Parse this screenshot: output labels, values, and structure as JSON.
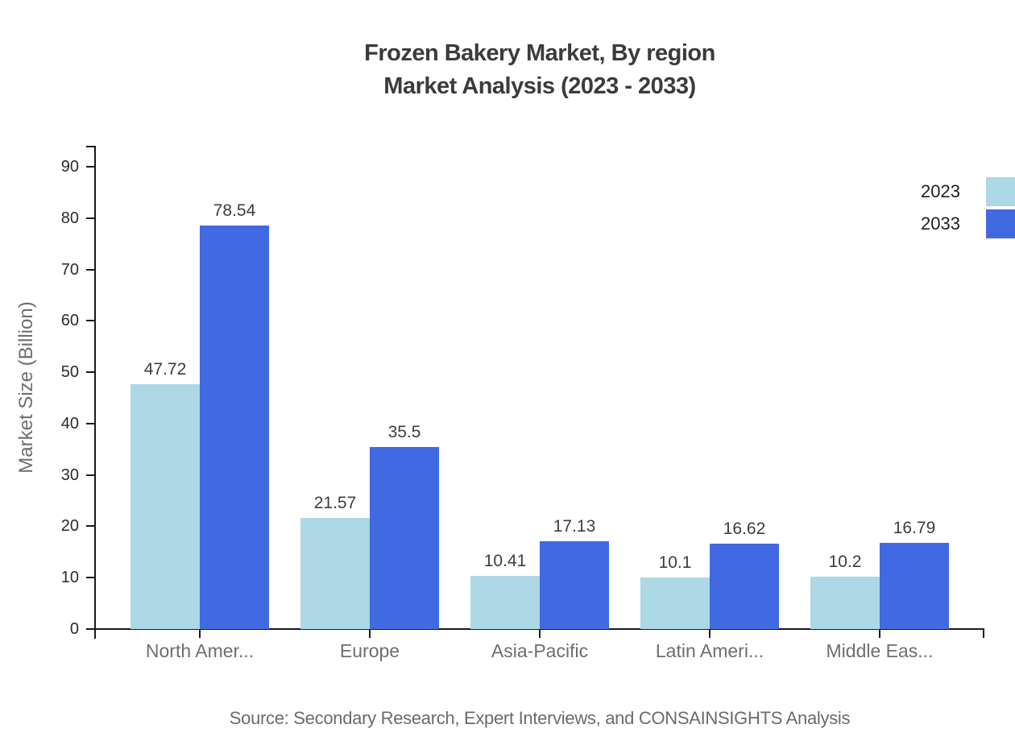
{
  "title": {
    "line1": "Frozen Bakery Market, By region",
    "line2": "Market Analysis (2023 - 2033)"
  },
  "source": "Source: Secondary Research, Expert Interviews, and CONSAINSIGHTS Analysis",
  "colors": {
    "series_2023": "#ADD8E6",
    "series_2033": "#4169E1",
    "axis": "#1a1a1a",
    "title_text": "#3b3b3b",
    "value_label_text": "#3d3d3d",
    "muted_text": "#6e6e6e"
  },
  "chart_data": {
    "type": "bar",
    "title": "Frozen Bakery Market, By region Market Analysis (2023 - 2033)",
    "categories": [
      "North Amer...",
      "Europe",
      "Asia-Pacific",
      "Latin Ameri...",
      "Middle Eas..."
    ],
    "series": [
      {
        "name": "2023",
        "color": "#ADD8E6",
        "values": [
          47.72,
          21.57,
          10.41,
          10.1,
          10.2
        ]
      },
      {
        "name": "2033",
        "color": "#4169E1",
        "values": [
          78.54,
          35.5,
          17.13,
          16.62,
          16.79
        ]
      }
    ],
    "xlabel": "",
    "ylabel": "Market Size (Billion)",
    "ylim": [
      0,
      90
    ],
    "yticks": [
      0,
      10,
      20,
      30,
      40,
      50,
      60,
      70,
      80,
      90
    ],
    "grid": false,
    "legend_position": "top-right",
    "value_labels": true
  }
}
